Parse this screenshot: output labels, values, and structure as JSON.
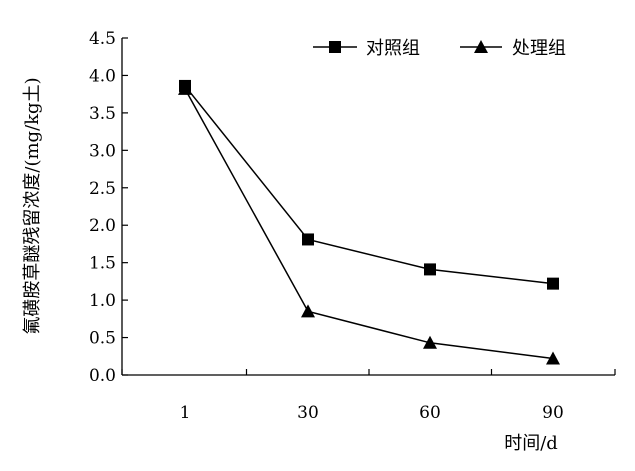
{
  "chart_data": {
    "type": "line",
    "categories": [
      "1",
      "30",
      "60",
      "90"
    ],
    "series": [
      {
        "name": "对照组",
        "marker": "square",
        "values": [
          3.86,
          1.81,
          1.41,
          1.22
        ]
      },
      {
        "name": "处理组",
        "marker": "triangle",
        "values": [
          3.82,
          0.85,
          0.43,
          0.22
        ]
      }
    ],
    "xlabel": "时间/d",
    "ylabel": "氟磺胺草醚残留浓度/(mg/kg土)",
    "ylim": [
      0,
      4.5
    ],
    "yticks": [
      "0.0",
      "0.5",
      "1.0",
      "1.5",
      "2.0",
      "2.5",
      "3.0",
      "3.5",
      "4.0",
      "4.5"
    ],
    "grid": false,
    "legend_position": "top-right",
    "colors": {
      "line": "#000000",
      "marker": "#000000",
      "axis": "#000000"
    }
  }
}
